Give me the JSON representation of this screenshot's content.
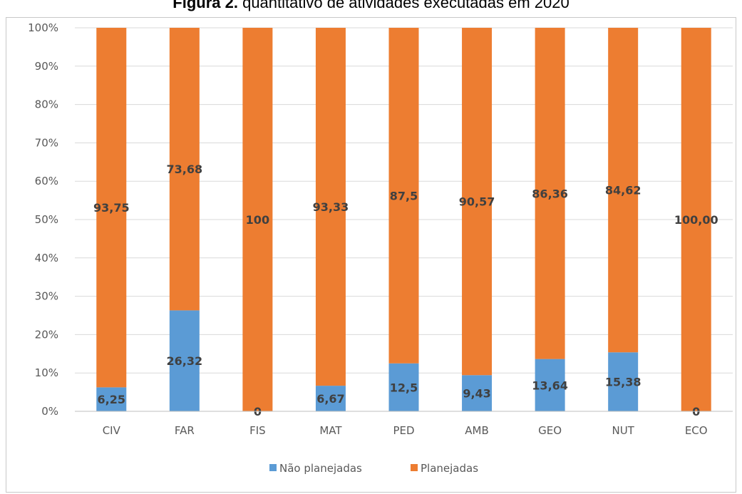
{
  "chart_data": {
    "type": "bar",
    "stacked": true,
    "title_bold": "Figura 2.",
    "title_rest": "quantitativo de atividades executadas em 2020",
    "categories": [
      "CIV",
      "FAR",
      "FIS",
      "MAT",
      "PED",
      "AMB",
      "GEO",
      "NUT",
      "ECO"
    ],
    "series": [
      {
        "name": "Não planejadas",
        "color": "#5b9bd5",
        "values": [
          6.25,
          26.32,
          0,
          6.67,
          12.5,
          9.43,
          13.64,
          15.38,
          0
        ],
        "labels": [
          "6,25",
          "26,32",
          "0",
          "6,67",
          "12,5",
          "9,43",
          "13,64",
          "15,38",
          "0"
        ]
      },
      {
        "name": "Planejadas",
        "color": "#ed7d31",
        "values": [
          93.75,
          73.68,
          100,
          93.33,
          87.5,
          90.57,
          86.36,
          84.62,
          100
        ],
        "labels": [
          "93,75",
          "73,68",
          "100",
          "93,33",
          "87,5",
          "90,57",
          "86,36",
          "84,62",
          "100,00"
        ]
      }
    ],
    "ylim": [
      0,
      100
    ],
    "yticks": [
      "0%",
      "10%",
      "20%",
      "30%",
      "40%",
      "50%",
      "60%",
      "70%",
      "80%",
      "90%",
      "100%"
    ],
    "grid": true,
    "legend": "bottom"
  }
}
